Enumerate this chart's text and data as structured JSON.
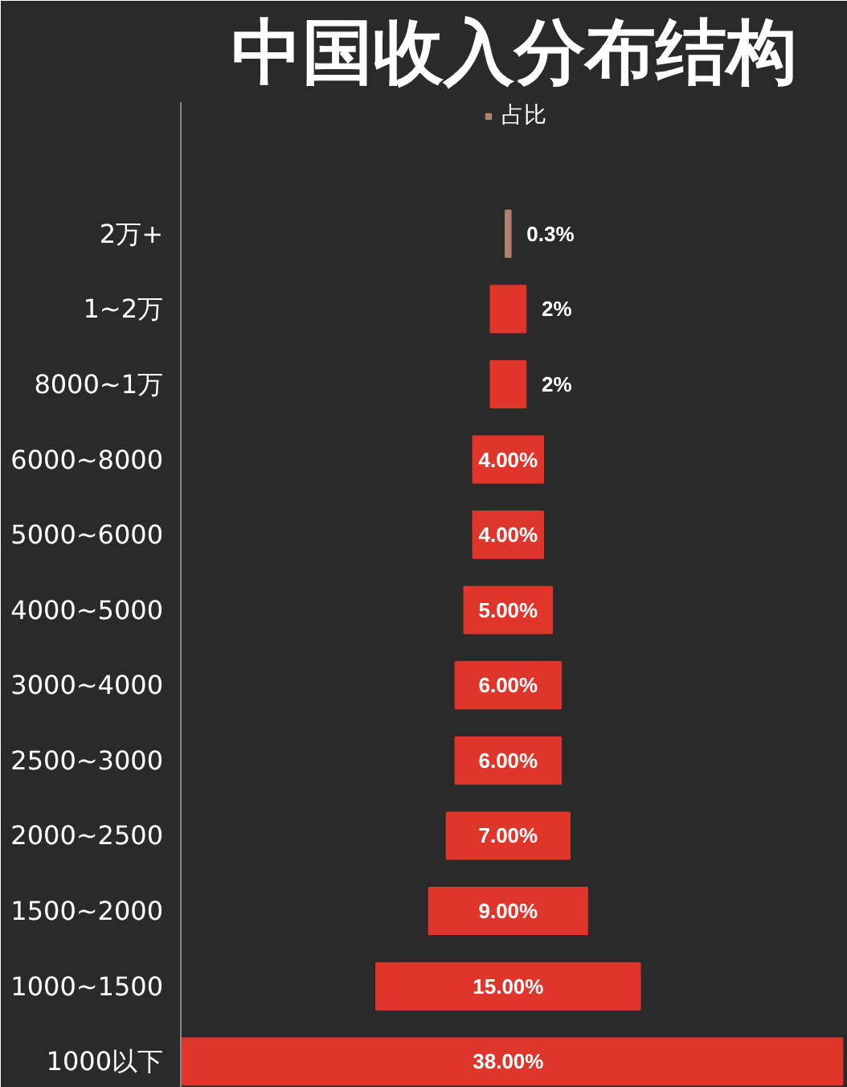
{
  "chart_data": {
    "type": "other",
    "title": "中国收入分布结构",
    "legend": "top",
    "categories": [
      "2万+",
      "1~2万",
      "8000~1万",
      "6000~8000",
      "5000~6000",
      "4000~5000",
      "3000~4000",
      "2500~3000",
      "2000~2500",
      "1500~2000",
      "1000~1500",
      "1000以下"
    ],
    "series": [
      {
        "name": "占比",
        "color": "#b5806e",
        "colors": [
          "#b5806e",
          "#e0352b",
          "#e0352b",
          "#e0352b",
          "#e0352b",
          "#e0352b",
          "#e0352b",
          "#e0352b",
          "#e0352b",
          "#e0352b",
          "#e0352b",
          "#e0352b"
        ],
        "values": [
          0.3,
          2,
          2,
          4,
          4,
          5,
          6,
          6,
          7,
          9,
          15,
          38
        ],
        "value_labels": [
          "0.3%",
          "2%",
          "2%",
          "4.00%",
          "4.00%",
          "5.00%",
          "6.00%",
          "6.00%",
          "7.00%",
          "9.00%",
          "15.00%",
          "38.00%"
        ]
      }
    ]
  }
}
